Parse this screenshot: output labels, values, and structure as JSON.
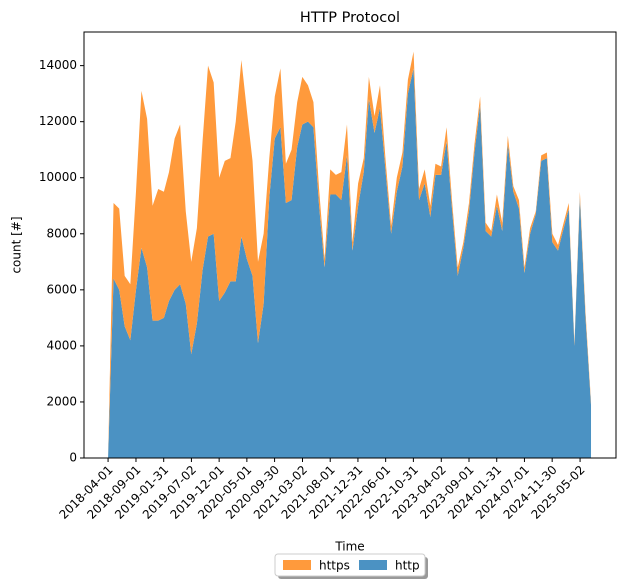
{
  "chart_data": {
    "type": "stacked_area",
    "title": "HTTP Protocol",
    "x_label": "Time",
    "y_label": "count [#]",
    "x": [
      "2018-04-01",
      "2018-05-01",
      "2018-06-01",
      "2018-07-01",
      "2018-08-01",
      "2018-09-01",
      "2018-10-01",
      "2018-11-01",
      "2018-12-01",
      "2019-01-01",
      "2019-02-01",
      "2019-03-01",
      "2019-04-01",
      "2019-05-01",
      "2019-06-01",
      "2019-07-01",
      "2019-08-01",
      "2019-09-01",
      "2019-10-01",
      "2019-11-01",
      "2019-12-01",
      "2020-01-01",
      "2020-02-01",
      "2020-03-01",
      "2020-04-01",
      "2020-05-01",
      "2020-06-01",
      "2020-07-01",
      "2020-08-01",
      "2020-09-01",
      "2020-10-01",
      "2020-11-01",
      "2020-12-01",
      "2021-01-01",
      "2021-02-01",
      "2021-03-01",
      "2021-04-01",
      "2021-05-01",
      "2021-06-01",
      "2021-07-01",
      "2021-08-01",
      "2021-09-01",
      "2021-10-01",
      "2021-11-01",
      "2021-12-01",
      "2022-01-01",
      "2022-02-01",
      "2022-03-01",
      "2022-04-01",
      "2022-05-01",
      "2022-06-01",
      "2022-07-01",
      "2022-08-01",
      "2022-09-01",
      "2022-10-01",
      "2022-11-01",
      "2022-12-01",
      "2023-01-01",
      "2023-02-01",
      "2023-03-01",
      "2023-04-01",
      "2023-05-01",
      "2023-06-01",
      "2023-07-01",
      "2023-08-01",
      "2023-09-01",
      "2023-10-01",
      "2023-11-01",
      "2023-12-01",
      "2024-01-01",
      "2024-02-01",
      "2024-03-01",
      "2024-04-01",
      "2024-05-01",
      "2024-06-01",
      "2024-07-01",
      "2024-08-01",
      "2024-09-01",
      "2024-10-01",
      "2024-11-01",
      "2024-12-01",
      "2025-01-01",
      "2025-02-01",
      "2025-03-01",
      "2025-04-01",
      "2025-05-01",
      "2025-06-01",
      "2025-07-01"
    ],
    "series": [
      {
        "name": "https",
        "color": "#ff9a3c",
        "values": [
          0,
          2700,
          2900,
          1800,
          2000,
          3500,
          5600,
          5300,
          4100,
          4700,
          4500,
          4600,
          5400,
          5700,
          3300,
          3300,
          3400,
          4600,
          6100,
          5400,
          4400,
          4700,
          4400,
          5700,
          6300,
          5300,
          4100,
          2900,
          2500,
          1400,
          1500,
          2100,
          1400,
          1800,
          1600,
          1700,
          1300,
          900,
          600,
          300,
          900,
          700,
          1000,
          1100,
          300,
          800,
          500,
          800,
          600,
          800,
          400,
          300,
          500,
          500,
          500,
          600,
          400,
          500,
          400,
          400,
          300,
          500,
          300,
          300,
          200,
          300,
          300,
          300,
          300,
          200,
          400,
          300,
          300,
          200,
          300,
          200,
          200,
          100,
          200,
          200,
          300,
          200,
          200,
          200,
          100,
          200,
          200,
          100
        ]
      },
      {
        "name": "http",
        "color": "#4b92c3",
        "values": [
          0,
          6400,
          6000,
          4700,
          4200,
          6000,
          7500,
          6800,
          4900,
          4900,
          5000,
          5600,
          6000,
          6200,
          5500,
          3700,
          4800,
          6700,
          7900,
          8000,
          5600,
          5900,
          6300,
          6300,
          7900,
          7100,
          6500,
          4100,
          5500,
          9300,
          11400,
          11800,
          9100,
          9200,
          11100,
          11900,
          12000,
          11800,
          9000,
          6800,
          9400,
          9400,
          9200,
          10800,
          7400,
          9000,
          10200,
          12800,
          11600,
          12500,
          10200,
          8000,
          9500,
          10400,
          13000,
          13900,
          9200,
          9800,
          8600,
          10100,
          10100,
          11300,
          8800,
          6500,
          7500,
          8800,
          10900,
          12600,
          8100,
          7900,
          9000,
          8100,
          11200,
          9500,
          8900,
          6600,
          8000,
          8700,
          10600,
          10700,
          7700,
          7400,
          8200,
          8900,
          4000,
          9300,
          5000,
          1900
        ]
      }
    ],
    "xlim": [
      "2017-11-20",
      "2025-11-15"
    ],
    "xticks": [
      "2018-04-01",
      "2018-09-01",
      "2019-01-31",
      "2019-07-02",
      "2019-12-01",
      "2020-05-01",
      "2020-09-30",
      "2021-03-02",
      "2021-08-01",
      "2021-12-31",
      "2022-06-01",
      "2022-10-31",
      "2023-04-02",
      "2023-09-01",
      "2024-01-31",
      "2024-07-01",
      "2024-11-30",
      "2025-05-02"
    ],
    "ylim": [
      0,
      15200
    ],
    "yticks": [
      0,
      2000,
      4000,
      6000,
      8000,
      10000,
      12000,
      14000
    ],
    "legend": "lower center",
    "grid": false
  }
}
